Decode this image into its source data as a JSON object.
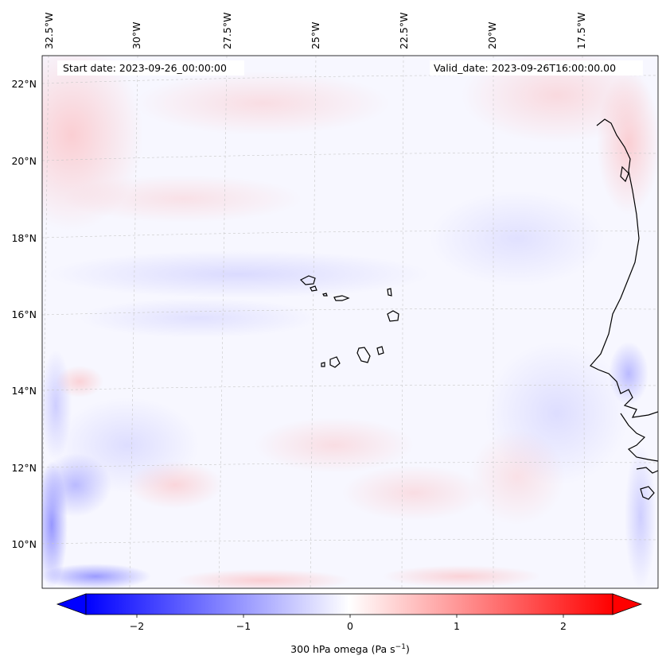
{
  "map": {
    "start_label": "Start date: 2023-09-26_00:00:00",
    "valid_label": "Valid_date: 2023-09-26T16:00:00.00",
    "lon_labels": [
      "32.5°W",
      "30°W",
      "27.5°W",
      "25°W",
      "22.5°W",
      "20°W",
      "17.5°W"
    ],
    "lat_labels": [
      "22°N",
      "20°N",
      "18°N",
      "16°N",
      "14°N",
      "12°N",
      "10°N"
    ],
    "variable": "300 hPa omega",
    "units": "Pa s",
    "units_exponent": "−1"
  },
  "colorbar": {
    "ticks": [
      "−2",
      "−1",
      "0",
      "1",
      "2"
    ],
    "min": -2.7,
    "max": 2.7,
    "colormap": "bwr",
    "low_color": "#0000ff",
    "mid_color": "#ffffff",
    "high_color": "#ff0000",
    "extend": "both"
  },
  "colors": {
    "coastline": "#000000",
    "gridline": "#c8c8c8",
    "background_tint": "#f7f7ff"
  }
}
